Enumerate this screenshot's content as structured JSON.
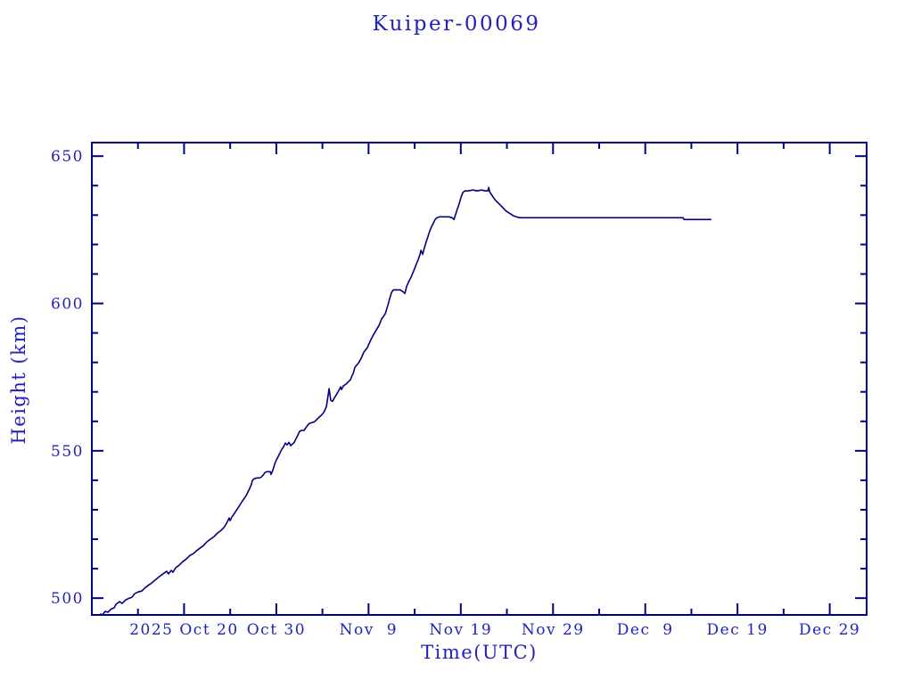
{
  "page": {
    "background": "#ffffff"
  },
  "colors": {
    "text": "#2222bb",
    "line": "#000080",
    "frame": "#000085",
    "background": "#ffffff"
  },
  "chart_data": {
    "type": "line",
    "title": "Kuiper-00069",
    "xlabel": "Time(UTC)",
    "ylabel": "Height (km)",
    "grid": false,
    "legend": "none",
    "x_axis": {
      "unit": "days since 2025 Oct 10 00:00 UTC",
      "range": [
        0,
        84
      ],
      "major_ticks": [
        {
          "day": 10,
          "label": "2025 Oct 20"
        },
        {
          "day": 20,
          "label": "Oct 30"
        },
        {
          "day": 30,
          "label": "Nov  9"
        },
        {
          "day": 40,
          "label": "Nov 19"
        },
        {
          "day": 50,
          "label": "Nov 29"
        },
        {
          "day": 60,
          "label": "Dec  9"
        },
        {
          "day": 70,
          "label": "Dec 19"
        },
        {
          "day": 80,
          "label": "Dec 29"
        }
      ],
      "minor_ticks": [
        5,
        15,
        25,
        35,
        45,
        55,
        65,
        75
      ]
    },
    "y_axis": {
      "unit": "km",
      "range": [
        494.3,
        654.6
      ],
      "major_ticks": [
        500,
        550,
        600,
        650
      ],
      "minor_ticks": [
        510,
        520,
        530,
        540,
        560,
        570,
        580,
        590,
        610,
        620,
        630,
        640
      ]
    },
    "series": [
      {
        "name": "height",
        "color": "#000080",
        "points": [
          [
            0.97,
            494.6
          ],
          [
            1.16,
            494.3
          ],
          [
            1.45,
            495.5
          ],
          [
            1.74,
            495.2
          ],
          [
            2.13,
            496.4
          ],
          [
            2.42,
            496.7
          ],
          [
            2.61,
            497.9
          ],
          [
            3.0,
            498.8
          ],
          [
            3.29,
            498.2
          ],
          [
            3.67,
            499.4
          ],
          [
            4.06,
            500.0
          ],
          [
            4.35,
            500.3
          ],
          [
            4.64,
            501.5
          ],
          [
            5.03,
            502.1
          ],
          [
            5.41,
            502.4
          ],
          [
            5.8,
            503.6
          ],
          [
            6.19,
            504.5
          ],
          [
            6.48,
            505.1
          ],
          [
            6.96,
            506.4
          ],
          [
            7.44,
            507.6
          ],
          [
            7.83,
            508.5
          ],
          [
            8.12,
            509.1
          ],
          [
            8.31,
            508.2
          ],
          [
            8.6,
            509.4
          ],
          [
            8.8,
            508.8
          ],
          [
            9.09,
            510.3
          ],
          [
            9.48,
            511.2
          ],
          [
            9.86,
            512.4
          ],
          [
            10.25,
            513.3
          ],
          [
            10.64,
            514.5
          ],
          [
            11.02,
            515.1
          ],
          [
            11.31,
            516.0
          ],
          [
            11.7,
            516.9
          ],
          [
            12.09,
            517.8
          ],
          [
            12.47,
            519.1
          ],
          [
            12.86,
            520.0
          ],
          [
            13.25,
            520.9
          ],
          [
            13.63,
            522.1
          ],
          [
            14.02,
            523.0
          ],
          [
            14.31,
            523.9
          ],
          [
            14.5,
            524.8
          ],
          [
            14.7,
            526.0
          ],
          [
            14.89,
            527.2
          ],
          [
            14.99,
            526.3
          ],
          [
            15.18,
            527.5
          ],
          [
            15.38,
            528.4
          ],
          [
            15.57,
            529.3
          ],
          [
            15.76,
            530.2
          ],
          [
            15.95,
            531.1
          ],
          [
            16.15,
            532.1
          ],
          [
            16.34,
            533.0
          ],
          [
            16.53,
            533.9
          ],
          [
            16.73,
            534.8
          ],
          [
            16.92,
            536.0
          ],
          [
            17.11,
            537.2
          ],
          [
            17.31,
            538.7
          ],
          [
            17.4,
            539.9
          ],
          [
            17.6,
            540.5
          ],
          [
            17.89,
            540.8
          ],
          [
            18.18,
            540.8
          ],
          [
            18.37,
            541.1
          ],
          [
            18.56,
            541.7
          ],
          [
            18.76,
            542.6
          ],
          [
            18.95,
            542.9
          ],
          [
            19.14,
            542.9
          ],
          [
            19.34,
            542.9
          ],
          [
            19.43,
            542.0
          ],
          [
            19.63,
            543.5
          ],
          [
            19.82,
            545.4
          ],
          [
            20.01,
            546.9
          ],
          [
            20.21,
            548.1
          ],
          [
            20.4,
            549.3
          ],
          [
            20.59,
            550.5
          ],
          [
            20.79,
            551.4
          ],
          [
            20.98,
            552.6
          ],
          [
            21.17,
            552.0
          ],
          [
            21.37,
            552.9
          ],
          [
            21.56,
            551.7
          ],
          [
            21.75,
            552.3
          ],
          [
            21.95,
            552.9
          ],
          [
            22.14,
            554.1
          ],
          [
            22.33,
            555.3
          ],
          [
            22.53,
            556.6
          ],
          [
            22.72,
            556.9
          ],
          [
            23.01,
            556.9
          ],
          [
            23.2,
            557.8
          ],
          [
            23.4,
            558.7
          ],
          [
            23.59,
            559.3
          ],
          [
            23.88,
            559.6
          ],
          [
            24.17,
            559.9
          ],
          [
            24.46,
            560.8
          ],
          [
            24.65,
            561.4
          ],
          [
            24.85,
            562.0
          ],
          [
            25.04,
            562.6
          ],
          [
            25.23,
            563.5
          ],
          [
            25.43,
            565.0
          ],
          [
            25.52,
            566.8
          ],
          [
            25.72,
            571.1
          ],
          [
            25.91,
            567.1
          ],
          [
            26.1,
            566.8
          ],
          [
            26.3,
            568.0
          ],
          [
            26.49,
            568.9
          ],
          [
            26.78,
            570.5
          ],
          [
            26.97,
            571.7
          ],
          [
            27.07,
            570.8
          ],
          [
            27.26,
            572.0
          ],
          [
            27.55,
            572.6
          ],
          [
            27.74,
            573.2
          ],
          [
            28.03,
            574.1
          ],
          [
            28.23,
            575.6
          ],
          [
            28.33,
            576.2
          ],
          [
            28.52,
            578.3
          ],
          [
            28.91,
            579.8
          ],
          [
            29.2,
            581.4
          ],
          [
            29.49,
            583.5
          ],
          [
            29.87,
            585.0
          ],
          [
            30.16,
            587.1
          ],
          [
            30.45,
            588.9
          ],
          [
            30.84,
            591.0
          ],
          [
            31.13,
            592.5
          ],
          [
            31.42,
            594.7
          ],
          [
            31.81,
            596.5
          ],
          [
            32.1,
            599.5
          ],
          [
            32.29,
            601.6
          ],
          [
            32.49,
            603.7
          ],
          [
            32.68,
            604.6
          ],
          [
            33.07,
            604.6
          ],
          [
            33.45,
            604.6
          ],
          [
            33.74,
            604.0
          ],
          [
            33.94,
            603.4
          ],
          [
            34.13,
            605.8
          ],
          [
            34.32,
            607.1
          ],
          [
            34.61,
            608.9
          ],
          [
            34.81,
            610.4
          ],
          [
            35.0,
            611.9
          ],
          [
            35.19,
            613.4
          ],
          [
            35.39,
            614.9
          ],
          [
            35.58,
            616.7
          ],
          [
            35.68,
            618.0
          ],
          [
            35.87,
            616.7
          ],
          [
            36.06,
            618.9
          ],
          [
            36.26,
            621.0
          ],
          [
            36.45,
            622.8
          ],
          [
            36.64,
            624.6
          ],
          [
            36.84,
            626.1
          ],
          [
            37.03,
            627.3
          ],
          [
            37.22,
            628.5
          ],
          [
            37.42,
            629.1
          ],
          [
            37.71,
            629.4
          ],
          [
            38.19,
            629.4
          ],
          [
            38.68,
            629.4
          ],
          [
            39.06,
            629.1
          ],
          [
            39.26,
            628.5
          ],
          [
            39.45,
            630.3
          ],
          [
            39.64,
            632.2
          ],
          [
            39.84,
            634.0
          ],
          [
            40.03,
            636.1
          ],
          [
            40.22,
            637.6
          ],
          [
            40.42,
            638.2
          ],
          [
            40.8,
            638.2
          ],
          [
            41.29,
            638.5
          ],
          [
            41.77,
            638.2
          ],
          [
            42.25,
            638.5
          ],
          [
            42.64,
            638.2
          ],
          [
            42.93,
            638.2
          ],
          [
            43.03,
            639.4
          ],
          [
            43.12,
            637.9
          ],
          [
            43.32,
            637.0
          ],
          [
            43.51,
            636.1
          ],
          [
            43.7,
            635.2
          ],
          [
            43.99,
            634.3
          ],
          [
            44.28,
            633.4
          ],
          [
            44.57,
            632.5
          ],
          [
            44.86,
            631.5
          ],
          [
            45.15,
            630.9
          ],
          [
            45.44,
            630.3
          ],
          [
            45.73,
            629.7
          ],
          [
            46.02,
            629.4
          ],
          [
            46.41,
            629.1
          ],
          [
            47.09,
            629.1
          ],
          [
            49.02,
            629.1
          ],
          [
            51.92,
            629.1
          ],
          [
            55.79,
            629.1
          ],
          [
            59.66,
            629.1
          ],
          [
            62.56,
            629.1
          ],
          [
            64.11,
            629.1
          ],
          [
            64.2,
            628.5
          ],
          [
            65.46,
            628.5
          ],
          [
            67.1,
            628.5
          ]
        ]
      }
    ]
  }
}
